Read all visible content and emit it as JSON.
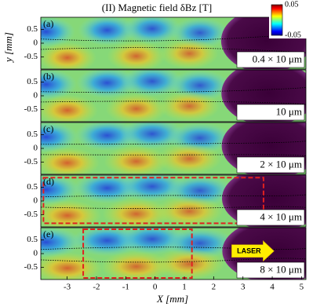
{
  "figure": {
    "title": "(II) Magnetic field δBz [T]",
    "xlabel": "X [mm]",
    "ylabel": "y [mm]",
    "xlim": [
      -3.9,
      5.15
    ],
    "xticks": [
      -3,
      -2,
      -1,
      0,
      1,
      2,
      3,
      4,
      5
    ],
    "colorbar": {
      "clim": [
        -0.05,
        0.05
      ],
      "ticks": [
        0.05,
        -0.05
      ]
    }
  },
  "chart_data": [
    {
      "type": "heatmap",
      "label": "(a)",
      "annotation": "0.4 × 10 μm",
      "ylim": [
        -0.95,
        0.95
      ],
      "yticks": [
        0.5,
        0,
        -0.5
      ]
    },
    {
      "type": "heatmap",
      "label": "(b)",
      "annotation": "10 μm",
      "ylim": [
        -0.95,
        0.95
      ],
      "yticks": [
        0.5,
        0,
        -0.5
      ]
    },
    {
      "type": "heatmap",
      "label": "(c)",
      "annotation": "2 × 10 μm",
      "ylim": [
        -0.95,
        0.95
      ],
      "yticks": [
        0.5,
        0,
        -0.5
      ]
    },
    {
      "type": "heatmap",
      "label": "(d)",
      "annotation": "4 × 10 μm",
      "ylim": [
        -0.95,
        0.95
      ],
      "yticks": [
        0.5,
        0,
        -0.5
      ]
    },
    {
      "type": "heatmap",
      "label": "(e)",
      "annotation": "8 × 10 μm",
      "laser_label": "LASER",
      "ylim": [
        -0.95,
        0.95
      ],
      "yticks": [
        0.5,
        0,
        -0.5
      ]
    }
  ]
}
